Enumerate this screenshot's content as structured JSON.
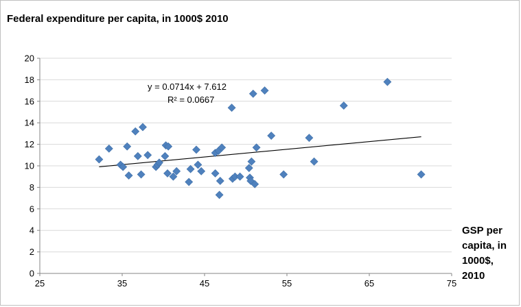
{
  "chart_data": {
    "type": "scatter",
    "ylabel": "Federal  expenditure per capita, in 1000$ 2010",
    "xlabel": "GSP per capita, in 1000$, 2010",
    "xlim": [
      25,
      75
    ],
    "ylim": [
      0,
      20
    ],
    "xticks": [
      "25",
      "35",
      "45",
      "55",
      "65",
      "75"
    ],
    "yticks": [
      "0",
      "2",
      "4",
      "6",
      "8",
      "10",
      "12",
      "14",
      "16",
      "18",
      "20"
    ],
    "grid": "horizontal",
    "legend": "none",
    "marker_color": "#4f81bd",
    "points": [
      {
        "x": 32.2,
        "y": 10.6
      },
      {
        "x": 33.4,
        "y": 11.6
      },
      {
        "x": 34.8,
        "y": 10.1
      },
      {
        "x": 35.1,
        "y": 9.9
      },
      {
        "x": 35.6,
        "y": 11.8
      },
      {
        "x": 35.8,
        "y": 9.1
      },
      {
        "x": 36.6,
        "y": 13.2
      },
      {
        "x": 36.9,
        "y": 10.9
      },
      {
        "x": 37.3,
        "y": 9.2
      },
      {
        "x": 37.5,
        "y": 13.6
      },
      {
        "x": 38.1,
        "y": 11.0
      },
      {
        "x": 39.1,
        "y": 9.9
      },
      {
        "x": 39.3,
        "y": 10.1
      },
      {
        "x": 39.5,
        "y": 10.3
      },
      {
        "x": 40.2,
        "y": 10.9
      },
      {
        "x": 40.3,
        "y": 11.9
      },
      {
        "x": 40.5,
        "y": 9.3
      },
      {
        "x": 40.6,
        "y": 11.8
      },
      {
        "x": 41.2,
        "y": 9.0
      },
      {
        "x": 41.6,
        "y": 9.5
      },
      {
        "x": 43.1,
        "y": 8.5
      },
      {
        "x": 43.3,
        "y": 9.7
      },
      {
        "x": 44.0,
        "y": 11.5
      },
      {
        "x": 44.2,
        "y": 10.1
      },
      {
        "x": 44.6,
        "y": 9.5
      },
      {
        "x": 46.3,
        "y": 9.3
      },
      {
        "x": 46.3,
        "y": 11.2
      },
      {
        "x": 46.7,
        "y": 11.4
      },
      {
        "x": 46.8,
        "y": 7.3
      },
      {
        "x": 46.9,
        "y": 8.6
      },
      {
        "x": 47.1,
        "y": 11.7
      },
      {
        "x": 48.3,
        "y": 15.4
      },
      {
        "x": 48.4,
        "y": 8.8
      },
      {
        "x": 48.7,
        "y": 9.0
      },
      {
        "x": 49.3,
        "y": 9.0
      },
      {
        "x": 50.4,
        "y": 9.8
      },
      {
        "x": 50.5,
        "y": 8.9
      },
      {
        "x": 50.6,
        "y": 8.6
      },
      {
        "x": 50.7,
        "y": 10.4
      },
      {
        "x": 50.9,
        "y": 16.7
      },
      {
        "x": 51.1,
        "y": 8.3
      },
      {
        "x": 51.3,
        "y": 11.7
      },
      {
        "x": 52.3,
        "y": 17.0
      },
      {
        "x": 53.1,
        "y": 12.8
      },
      {
        "x": 54.6,
        "y": 9.2
      },
      {
        "x": 57.7,
        "y": 12.6
      },
      {
        "x": 58.3,
        "y": 10.4
      },
      {
        "x": 61.9,
        "y": 15.6
      },
      {
        "x": 67.2,
        "y": 17.8
      },
      {
        "x": 71.3,
        "y": 9.2
      }
    ],
    "trendline": {
      "equation": "y = 0.0714x + 7.612",
      "r2": "R² = 0.0667",
      "slope": 0.0714,
      "intercept": 7.612,
      "x_start": 32.2,
      "x_end": 71.3
    }
  }
}
